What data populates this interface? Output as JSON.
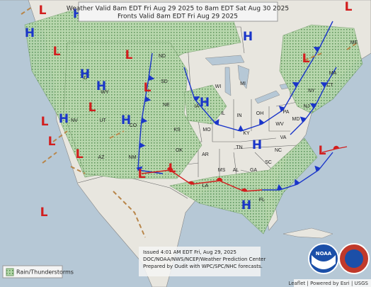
{
  "header": {
    "line1": "Weather Valid 8am EDT Fri Aug 29 2025 to 8am EDT Sat Aug 30 2025",
    "line2": "Fronts Valid 8am EDT Fri Aug 29 2025"
  },
  "legend": {
    "label": "Rain/Thunderstorms"
  },
  "issued": {
    "lines": [
      "Issued  4:01 AM EDT  Fri, Aug 29, 2025",
      "DOC/NOAA/NWS/NCEP/Weather Prediction Center",
      "Prepared by Oudit with WPC/SPC/NHC forecasts."
    ]
  },
  "attribution": "Leaflet | Powered by Esri | USGS",
  "logos": {
    "noaa": "NOAA"
  },
  "states": [
    "ND",
    "SD",
    "NE",
    "KS",
    "OK",
    "AR",
    "MO",
    "IL",
    "IN",
    "OH",
    "KY",
    "WV",
    "VA",
    "NC",
    "TN",
    "SC",
    "GA",
    "AL",
    "MS",
    "LA",
    "FL",
    "PA",
    "NY",
    "MI",
    "WI",
    "IA",
    "WY",
    "CO",
    "NM",
    "AZ",
    "UT",
    "NV",
    "ID",
    "MD",
    "NJ",
    "CT",
    "MA",
    "ME"
  ],
  "pressure_centers": [
    "H",
    "H",
    "H",
    "H",
    "H",
    "H",
    "H",
    "H",
    "H",
    "H",
    "L",
    "L",
    "L",
    "L",
    "L",
    "L",
    "L",
    "L",
    "L",
    "L",
    "L",
    "L",
    "L",
    "L"
  ]
}
